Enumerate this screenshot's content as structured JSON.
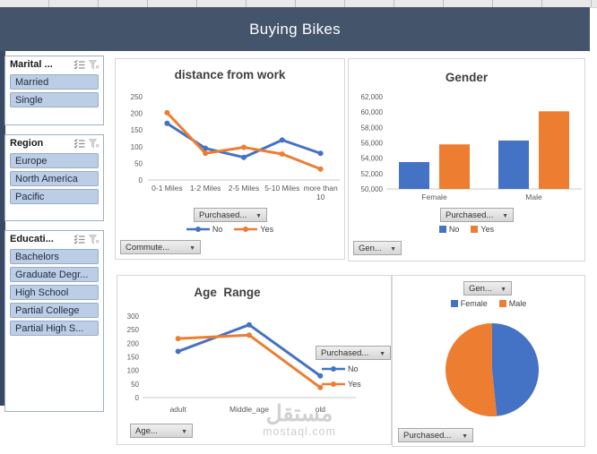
{
  "window": {
    "banner_title": "Buying Bikes"
  },
  "colors": {
    "banner": "#44546A",
    "series_no_blue": "#4472C4",
    "series_yes_orange": "#ED7D31",
    "slicer_item_fill": "#BCCEE6"
  },
  "slicers": [
    {
      "title": "Marital ...",
      "items": [
        "Married",
        "Single"
      ]
    },
    {
      "title": "Region",
      "items": [
        "Europe",
        "North America",
        "Pacific"
      ]
    },
    {
      "title": "Educati...",
      "items": [
        "Bachelors",
        "Graduate Degr...",
        "High School",
        "Partial College",
        "Partial High S..."
      ]
    }
  ],
  "chart_data": [
    {
      "type": "line",
      "title": "distance from work",
      "categories": [
        "0-1 Miles",
        "1-2 Miles",
        "2-5 Miles",
        "5-10 Miles",
        "more than 10"
      ],
      "series": [
        {
          "name": "No",
          "color": "#4472C4",
          "values": [
            170,
            95,
            68,
            120,
            80
          ]
        },
        {
          "name": "Yes",
          "color": "#ED7D31",
          "values": [
            202,
            80,
            98,
            78,
            33
          ]
        }
      ],
      "ylim": [
        0,
        250
      ],
      "yticks": [
        0,
        50,
        100,
        150,
        200,
        250
      ],
      "legend_position": "bottom",
      "grid": "off",
      "field_buttons": {
        "legend": "Purchased...",
        "axis": "Commute..."
      }
    },
    {
      "type": "bar",
      "title": "Gender",
      "categories": [
        "Female",
        "Male"
      ],
      "series": [
        {
          "name": "No",
          "color": "#4472C4",
          "values": [
            53500,
            56300
          ]
        },
        {
          "name": "Yes",
          "color": "#ED7D31",
          "values": [
            55800,
            60100
          ]
        }
      ],
      "ylim": [
        50000,
        62000
      ],
      "yticks": [
        50000,
        52000,
        54000,
        56000,
        58000,
        60000,
        62000
      ],
      "legend_position": "bottom",
      "grid": "off",
      "field_buttons": {
        "legend": "Purchased...",
        "axis": "Gen..."
      }
    },
    {
      "type": "line",
      "title": "Age  Range",
      "categories": [
        "adult",
        "Middle_age",
        "old"
      ],
      "series": [
        {
          "name": "No",
          "color": "#4472C4",
          "values": [
            170,
            268,
            80
          ]
        },
        {
          "name": "Yes",
          "color": "#ED7D31",
          "values": [
            217,
            230,
            37
          ]
        }
      ],
      "ylim": [
        0,
        300
      ],
      "yticks": [
        0,
        50,
        100,
        150,
        200,
        250,
        300
      ],
      "legend_position": "right",
      "grid": "off",
      "field_buttons": {
        "legend": "Purchased...",
        "axis": "Age..."
      }
    },
    {
      "type": "pie",
      "title": "",
      "slices": [
        {
          "name": "Female",
          "color": "#4472C4",
          "pct": 48.4
        },
        {
          "name": "Male",
          "color": "#ED7D31",
          "pct": 51.6
        }
      ],
      "legend_position": "top",
      "field_buttons": {
        "top": "Gen...",
        "bottom": "Purchased..."
      }
    }
  ],
  "watermark": {
    "arabic": "مستقل",
    "domain": "mostaql.com"
  }
}
